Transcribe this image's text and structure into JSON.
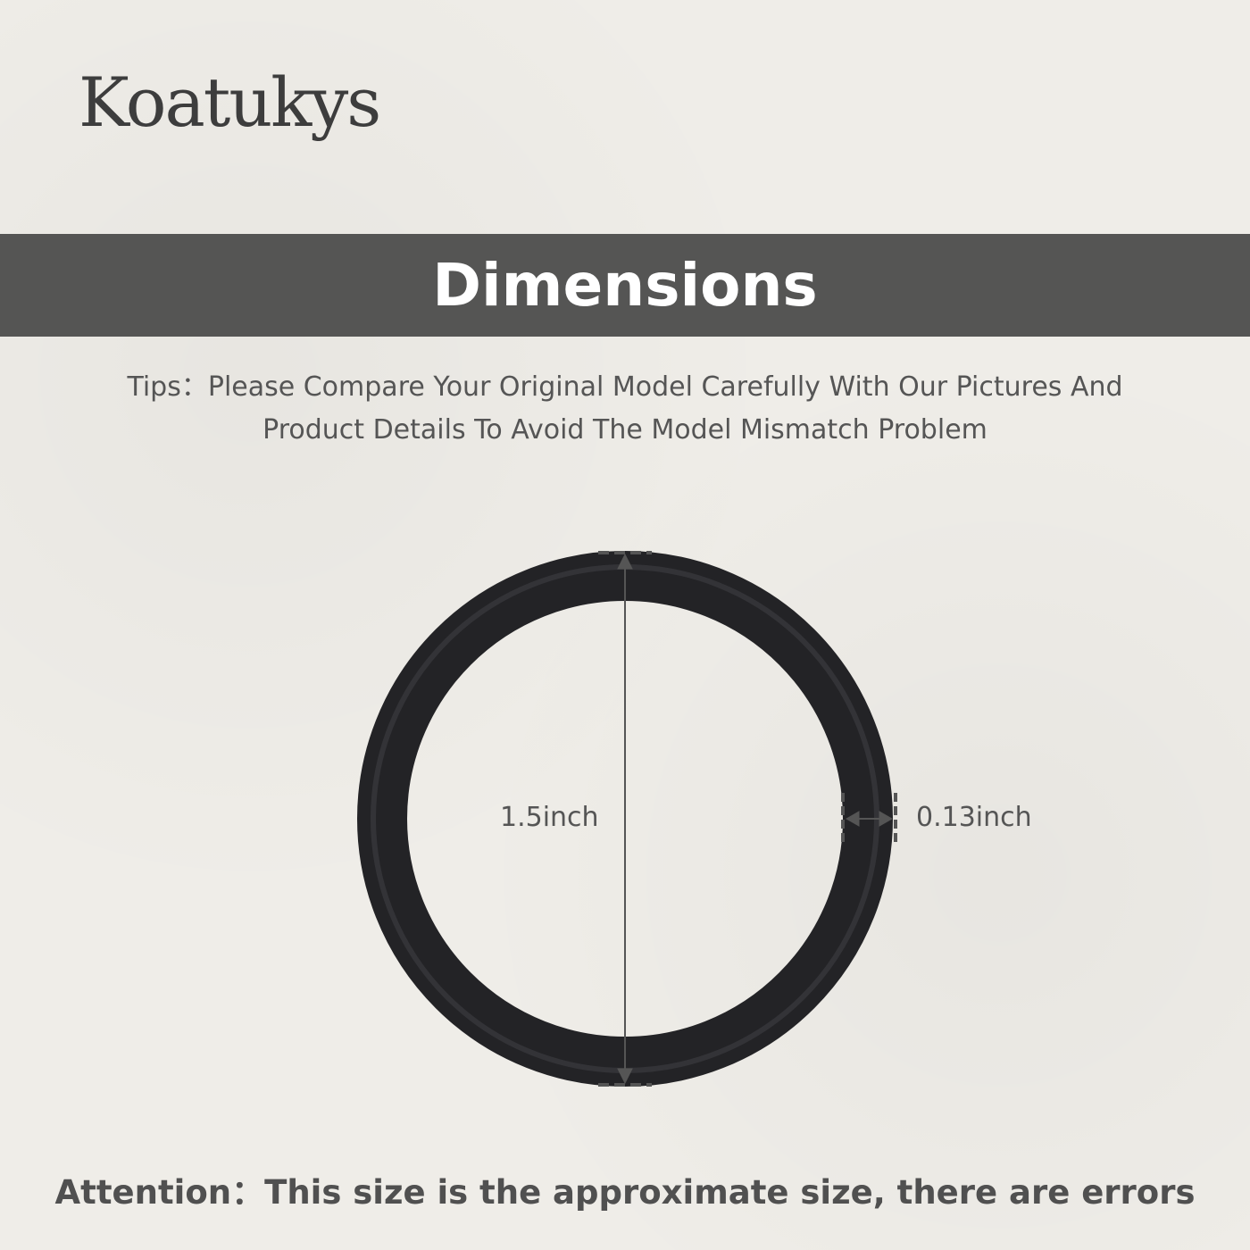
{
  "brand": "Koatukys",
  "banner_title": "Dimensions",
  "tips": {
    "line1": "Tips：Please Compare Your Original Model Carefully With Our Pictures And",
    "line2": "Product Details To Avoid The Model Mismatch Problem"
  },
  "dimensions": {
    "diameter": "1.5inch",
    "thickness": "0.13inch"
  },
  "attention": "Attention：This size is the approximate size, there are errors",
  "colors": {
    "banner": "#555554",
    "ring": "#1f1f22",
    "text": "#555555"
  }
}
